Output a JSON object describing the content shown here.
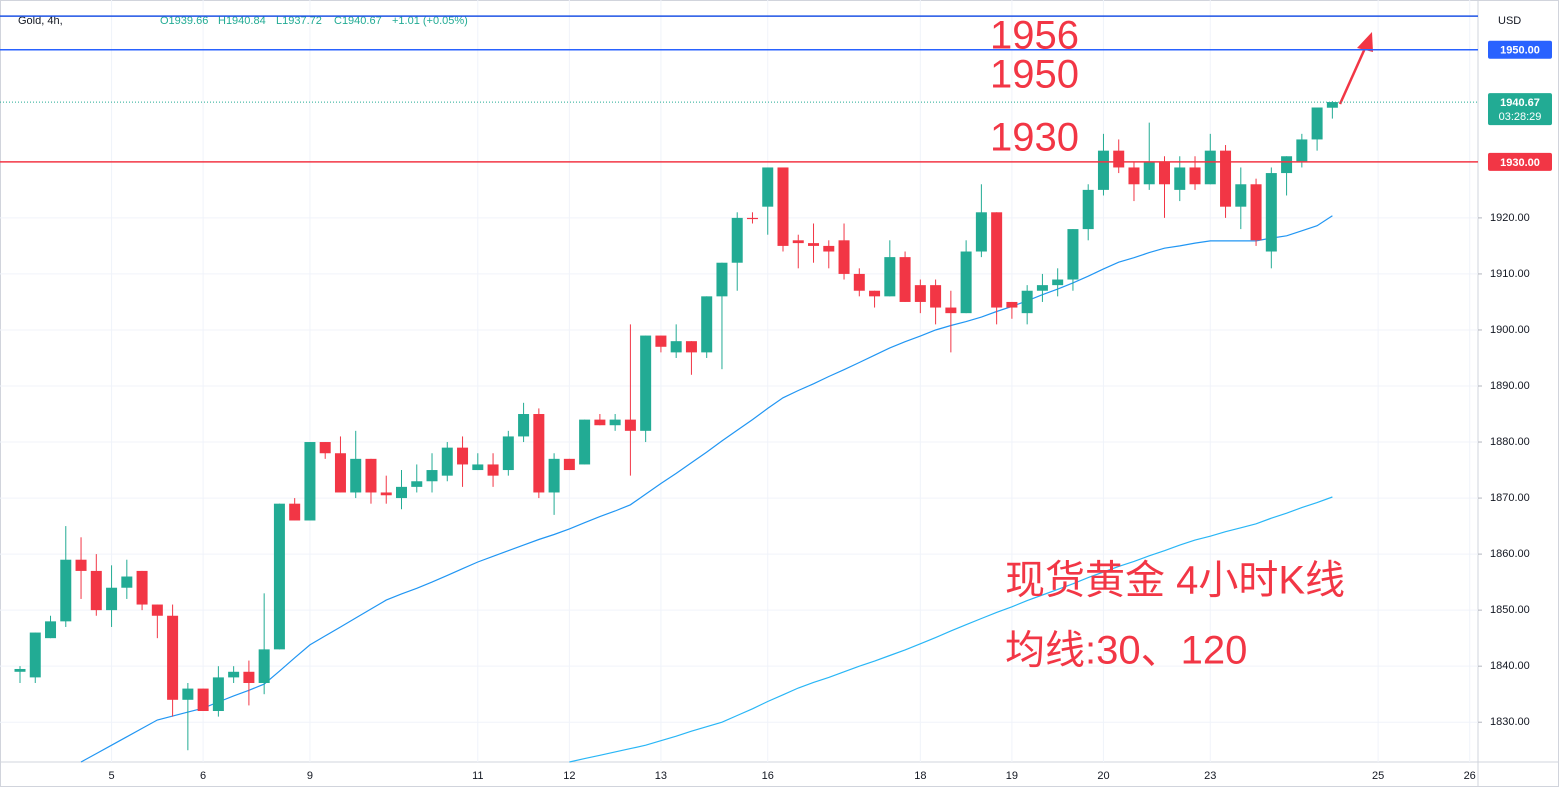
{
  "header": {
    "symbol": "Gold, 4h,",
    "open": "O1939.66",
    "high": "H1940.84",
    "low": "L1937.72",
    "close": "C1940.67",
    "change": "+1.01 (+0.05%)"
  },
  "currency": "USD",
  "chart_data": {
    "type": "candlestick",
    "categories": [
      null,
      null,
      null,
      null,
      null,
      null,
      "5",
      null,
      null,
      null,
      null,
      null,
      "6",
      null,
      null,
      null,
      null,
      null,
      null,
      "9",
      null,
      null,
      null,
      null,
      null,
      null,
      null,
      null,
      null,
      null,
      "11",
      null,
      null,
      null,
      null,
      null,
      "12",
      null,
      null,
      null,
      null,
      null,
      "13",
      null,
      null,
      null,
      null,
      null,
      null,
      "16",
      null,
      null,
      null,
      null,
      null,
      null,
      null,
      null,
      null,
      "18",
      null,
      null,
      null,
      null,
      null,
      "19",
      null,
      null,
      null,
      null,
      null,
      "20",
      null,
      null,
      null,
      null,
      null,
      null,
      "23",
      null,
      null,
      null,
      null,
      null,
      null,
      null,
      null,
      null,
      null,
      "25",
      null,
      null,
      null,
      null,
      null,
      "26",
      null
    ],
    "open": [
      1839,
      1838,
      1845,
      1848,
      1859,
      1857,
      1850,
      1854,
      1857,
      1851,
      1849,
      1834,
      1836,
      1832,
      1838,
      1839,
      1837,
      1843,
      1869,
      1866,
      1880,
      1878,
      1871,
      1877,
      1871,
      1870,
      1872,
      1873,
      1874,
      1879,
      1875,
      1876,
      1875,
      1881,
      1885,
      1871,
      1877,
      1876,
      1884,
      1883,
      1884,
      1882,
      1899,
      1896,
      1898,
      1896,
      1906,
      1912,
      1920,
      1922,
      1929,
      1916,
      1915.5,
      1915,
      1916,
      1910,
      1907,
      1906,
      1913,
      1908,
      1908,
      1904,
      1903,
      1914,
      1921,
      1905,
      1903,
      1907,
      1908,
      1909,
      1918,
      1925,
      1932,
      1929,
      1926,
      1930,
      1925,
      1929,
      1926,
      1932,
      1922,
      1926,
      1914,
      1928,
      1930,
      1934,
      1939.66,
      null,
      null,
      null,
      null,
      null,
      null,
      null,
      null,
      null,
      null
    ],
    "high": [
      1840,
      1846,
      1849,
      1865,
      1863,
      1860,
      1858,
      1859,
      1857,
      1851,
      1851,
      1837,
      1836,
      1840,
      1840,
      1841,
      1853,
      1869,
      1870,
      1880,
      1880,
      1881,
      1882,
      1877,
      1874,
      1875,
      1876,
      1878,
      1880,
      1881,
      1878,
      1878,
      1882,
      1887,
      1886,
      1878,
      1877,
      1884,
      1885,
      1885,
      1901,
      1899,
      1899,
      1901,
      1898,
      1906,
      1912,
      1921,
      1921,
      1929,
      1929,
      1917,
      1919,
      1916,
      1919,
      1911,
      1907,
      1916,
      1914,
      1909,
      1909,
      1907,
      1916,
      1926,
      1921,
      1905,
      1908,
      1910,
      1911,
      1918,
      1926,
      1935,
      1934,
      1930,
      1937,
      1931,
      1931,
      1931,
      1935,
      1933,
      1929,
      1927,
      1929,
      1931,
      1935,
      1939.7,
      1940.84,
      null,
      null,
      null,
      null,
      null,
      null,
      null,
      null,
      null,
      null
    ],
    "low": [
      1837,
      1837,
      1845,
      1847,
      1852,
      1849,
      1847,
      1852,
      1850,
      1845,
      1831,
      1825,
      1832,
      1831,
      1837,
      1833,
      1835,
      1843,
      1866,
      1866,
      1877,
      1871,
      1870,
      1869,
      1869,
      1868,
      1871,
      1871,
      1873,
      1872,
      1875,
      1872,
      1874,
      1880,
      1870,
      1867,
      1875,
      1876,
      1883,
      1882,
      1874,
      1880,
      1896,
      1895,
      1892,
      1895,
      1893,
      1907,
      1919,
      1917,
      1914,
      1911,
      1912,
      1911,
      1909,
      1906,
      1904,
      1906,
      1905,
      1903,
      1901,
      1896,
      1903,
      1913,
      1901,
      1902,
      1901,
      1905,
      1906,
      1907,
      1916,
      1924,
      1928,
      1923,
      1925,
      1920,
      1923,
      1925,
      1926,
      1920,
      1918,
      1915,
      1911,
      1924,
      1929,
      1932,
      1937.72,
      null,
      null,
      null,
      null,
      null,
      null,
      null,
      null,
      null,
      null
    ],
    "close": [
      1839.5,
      1846,
      1848,
      1859,
      1857,
      1850,
      1854,
      1856,
      1851,
      1849,
      1834,
      1836,
      1832,
      1838,
      1839,
      1837,
      1843,
      1869,
      1866,
      1880,
      1878,
      1871,
      1877,
      1871,
      1870.5,
      1872,
      1873,
      1875,
      1879,
      1876,
      1876,
      1874,
      1881,
      1885,
      1871,
      1877,
      1875,
      1884,
      1883,
      1884,
      1882,
      1899,
      1897,
      1898,
      1896,
      1906,
      1912,
      1920,
      1919.8,
      1929,
      1915,
      1915.5,
      1915,
      1914,
      1910,
      1907,
      1906,
      1913,
      1905,
      1905,
      1904,
      1903,
      1914,
      1921,
      1904,
      1904,
      1907,
      1908,
      1909,
      1918,
      1925,
      1932,
      1929,
      1926,
      1930,
      1926,
      1929,
      1926,
      1932,
      1922,
      1926,
      1916,
      1928,
      1931,
      1934,
      1939.7,
      1940.67,
      null,
      null,
      null,
      null,
      null,
      null,
      null,
      null,
      null,
      null
    ],
    "up_color": "#22ab94",
    "down_color": "#f23645",
    "series": [
      {
        "color": "#2196f3",
        "values": [
          null,
          null,
          null,
          null,
          1822.9,
          1824.4,
          1825.9,
          1827.4,
          1828.9,
          1830.4,
          1831.1,
          1831.8,
          1832.5,
          1833.6,
          1834.7,
          1835.7,
          1836.8,
          1839.1,
          1841.5,
          1843.8,
          1845.4,
          1847.0,
          1848.6,
          1850.2,
          1851.8,
          1852.9,
          1853.9,
          1855.0,
          1856.2,
          1857.4,
          1858.6,
          1859.6,
          1860.6,
          1861.6,
          1862.6,
          1863.5,
          1864.5,
          1865.6,
          1866.7,
          1867.7,
          1868.8,
          1870.7,
          1872.6,
          1874.4,
          1876.3,
          1878.2,
          1880.2,
          1882.1,
          1884.0,
          1886.0,
          1887.9,
          1889.2,
          1890.4,
          1891.7,
          1892.9,
          1894.2,
          1895.5,
          1896.8,
          1897.9,
          1898.9,
          1900.0,
          1900.8,
          1901.5,
          1902.3,
          1903.3,
          1904.2,
          1905.2,
          1906.3,
          1907.3,
          1908.4,
          1909.6,
          1910.9,
          1912.1,
          1912.9,
          1913.8,
          1914.6,
          1915.0,
          1915.5,
          1915.9,
          1915.9,
          1915.9,
          1915.9,
          1916.4,
          1916.8,
          1917.7,
          1918.6,
          1920.4,
          null,
          null,
          null,
          null,
          null,
          null,
          null,
          null,
          null,
          null
        ]
      },
      {
        "color": "#29b6f6",
        "values": [
          null,
          null,
          null,
          null,
          null,
          null,
          null,
          null,
          null,
          null,
          null,
          null,
          null,
          null,
          null,
          null,
          null,
          null,
          null,
          null,
          null,
          null,
          null,
          null,
          null,
          null,
          null,
          null,
          null,
          null,
          null,
          null,
          null,
          null,
          null,
          null,
          1822.9,
          1823.5,
          1824.1,
          1824.7,
          1825.3,
          1825.9,
          1826.7,
          1827.5,
          1828.4,
          1829.2,
          1830.0,
          1831.2,
          1832.4,
          1833.7,
          1834.9,
          1836.1,
          1837.1,
          1838.0,
          1839.0,
          1840.0,
          1840.9,
          1841.9,
          1842.9,
          1844.0,
          1845.1,
          1846.3,
          1847.4,
          1848.5,
          1849.6,
          1850.6,
          1851.7,
          1852.7,
          1853.7,
          1854.7,
          1855.8,
          1856.8,
          1857.8,
          1858.7,
          1859.7,
          1860.6,
          1861.6,
          1862.5,
          1863.2,
          1864.0,
          1864.7,
          1865.4,
          1866.4,
          1867.3,
          1868.3,
          1869.2,
          1870.2,
          null,
          null,
          null,
          null,
          null,
          null,
          null,
          null,
          null,
          null
        ]
      }
    ],
    "ylim": [
      1822.9,
      1957.1
    ],
    "yticks": [
      {
        "value": 1830,
        "label": "1830.00"
      },
      {
        "value": 1840,
        "label": "1840.00"
      },
      {
        "value": 1850,
        "label": "1850.00"
      },
      {
        "value": 1860,
        "label": "1860.00"
      },
      {
        "value": 1870,
        "label": "1870.00"
      },
      {
        "value": 1880,
        "label": "1880.00"
      },
      {
        "value": 1890,
        "label": "1890.00"
      },
      {
        "value": 1900,
        "label": "1900.00"
      },
      {
        "value": 1910,
        "label": "1910.00"
      },
      {
        "value": 1920,
        "label": "1920.00"
      }
    ],
    "grid": true,
    "levels": [
      {
        "value": 1956,
        "color": "#1e53e5"
      },
      {
        "value": 1950,
        "label": "1950.00",
        "color": "#2962ff"
      },
      {
        "value": 1930,
        "label": "1930.00",
        "color": "#f23645"
      }
    ],
    "last_price": 1940.67,
    "countdown": "03:28:29",
    "annotations": [
      "1956",
      "1950",
      "1930",
      "现货黄金 4小时K线",
      "均线:30、120"
    ]
  }
}
